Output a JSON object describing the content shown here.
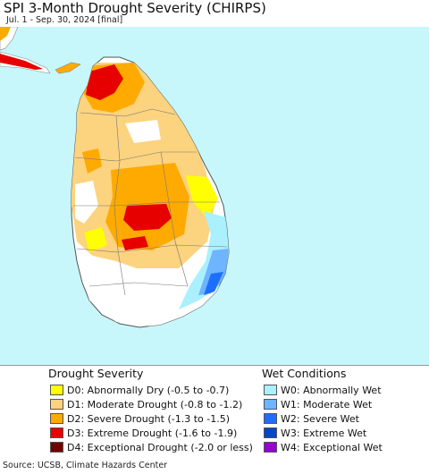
{
  "header": {
    "title": "SPI 3-Month Drought Severity (CHIRPS)",
    "subtitle": "Jul. 1 - Sep. 30, 2024 [final]"
  },
  "map": {
    "ocean_color": "#c7f7fb",
    "land_color": "#ffffff",
    "boundary_color": "#888888"
  },
  "legend": {
    "drought": {
      "title": "Drought Severity",
      "items": [
        {
          "label": "D0: Abnormally Dry (-0.5 to -0.7)",
          "color": "#ffff00"
        },
        {
          "label": "D1: Moderate Drought (-0.8 to -1.2)",
          "color": "#fcd37f"
        },
        {
          "label": "D2: Severe Drought (-1.3 to -1.5)",
          "color": "#ffaa00"
        },
        {
          "label": "D3: Extreme Drought (-1.6 to -1.9)",
          "color": "#e60000"
        },
        {
          "label": "D4: Exceptional Drought (-2.0 or less)",
          "color": "#730000"
        }
      ]
    },
    "wet": {
      "title": "Wet Conditions",
      "items": [
        {
          "label": "W0: Abnormally Wet",
          "color": "#aaf0ff"
        },
        {
          "label": "W1: Moderate Wet",
          "color": "#6eb4ff"
        },
        {
          "label": "W2: Severe Wet",
          "color": "#1e6eff"
        },
        {
          "label": "W3: Extreme Wet",
          "color": "#0046c8"
        },
        {
          "label": "W4: Exceptional Wet",
          "color": "#9600d2"
        }
      ]
    }
  },
  "footer": {
    "source": "Source: UCSB, Climate Hazards Center"
  }
}
